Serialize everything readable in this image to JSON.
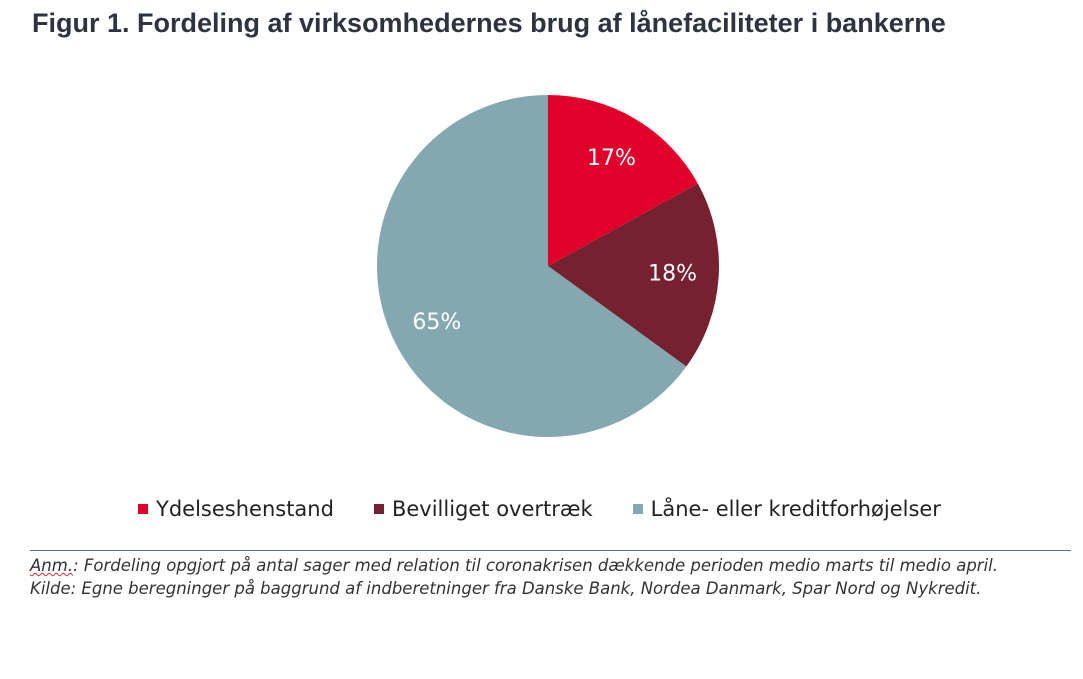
{
  "title": "Figur 1. Fordeling af virksomhedernes brug af lånefaciliteter i bankerne",
  "chart_data": {
    "type": "pie",
    "slices": [
      {
        "label": "Ydelseshenstand",
        "value": 17,
        "display": "17%",
        "color": "#e0002a"
      },
      {
        "label": "Bevilliget overtræk",
        "value": 18,
        "display": "18%",
        "color": "#75212f"
      },
      {
        "label": "Låne- eller kreditforhøjelser",
        "value": 65,
        "display": "65%",
        "color": "#84a8b0"
      }
    ],
    "start": "12 o'clock",
    "direction": "clockwise",
    "legend_position": "bottom"
  },
  "notes": {
    "anm_prefix": "Anm.",
    "anm_text": ": Fordeling opgjort på antal sager med relation til coronakrisen dækkende perioden medio marts til medio april.",
    "kilde": "Kilde: Egne beregninger på baggrund af indberetninger fra Danske Bank, Nordea Danmark, Spar Nord og Nykredit."
  }
}
